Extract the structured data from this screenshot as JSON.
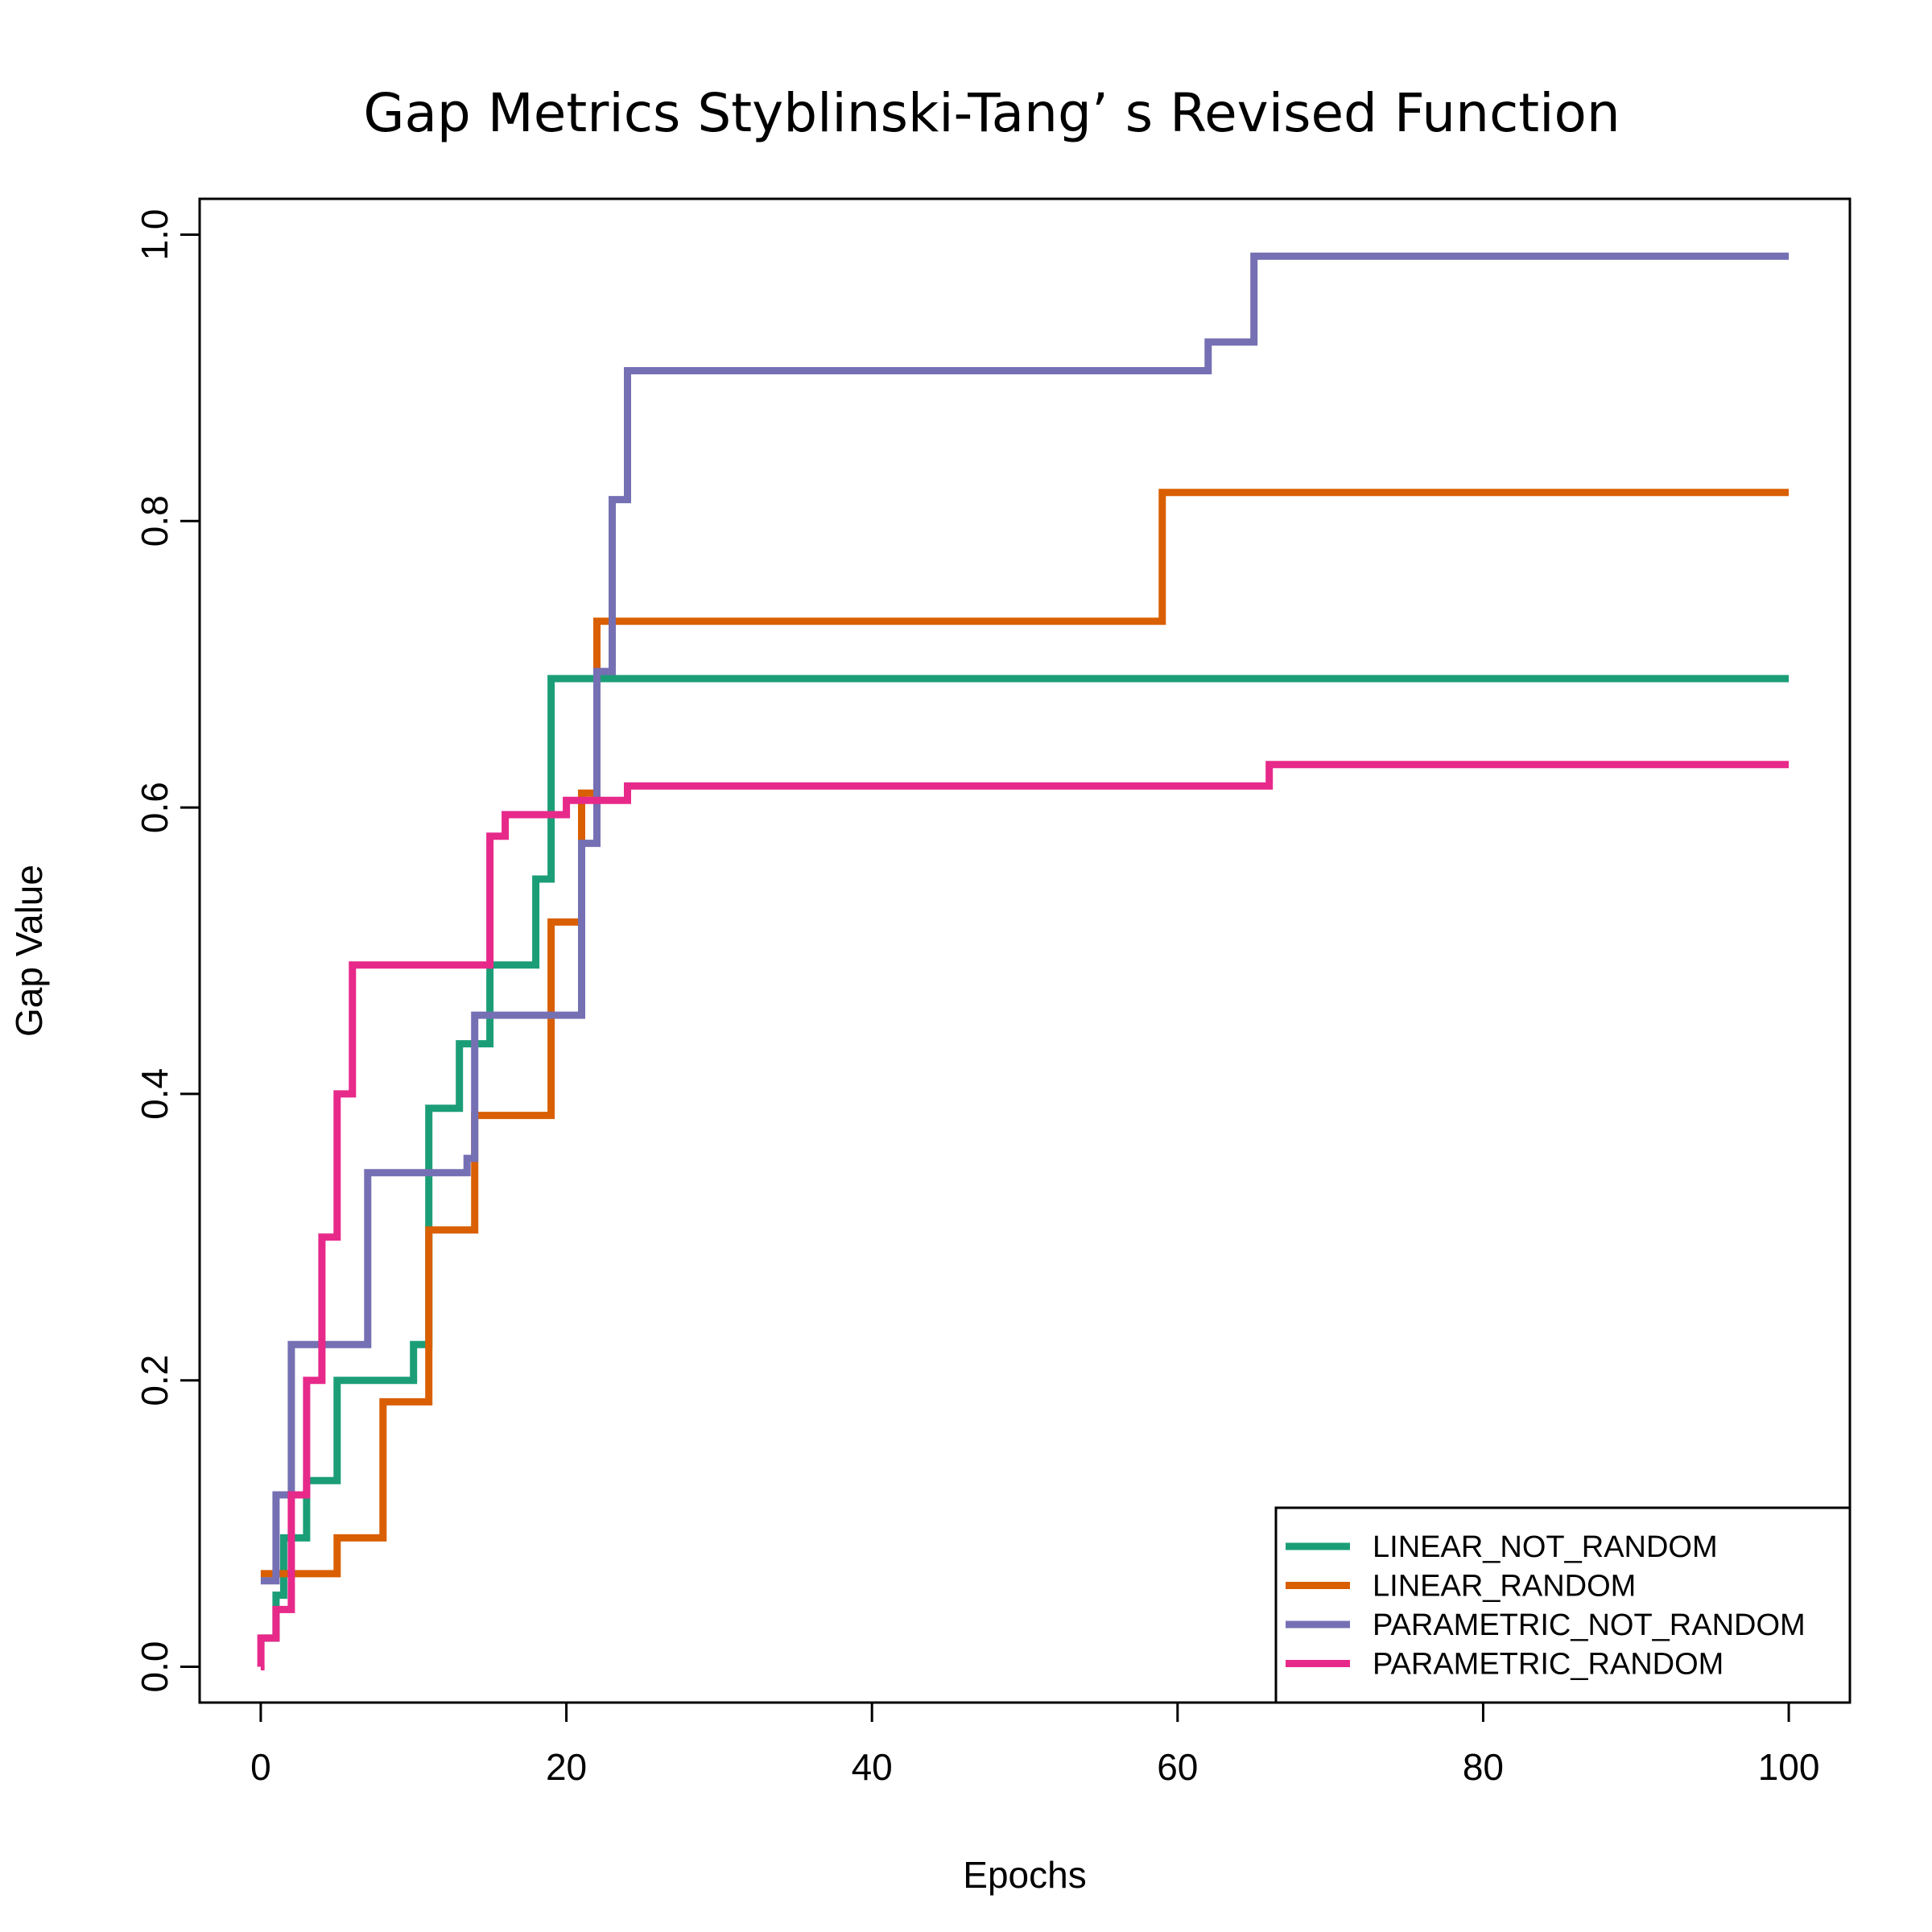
{
  "chart_data": {
    "type": "line",
    "step": true,
    "title": "Gap Metrics Styblinski-Tang’ s Revised Function",
    "xlabel": "Epochs",
    "ylabel": "Gap Value",
    "xlim": [
      -4,
      104
    ],
    "ylim": [
      -0.025,
      1.025
    ],
    "xticks": [
      0,
      20,
      40,
      60,
      80,
      100
    ],
    "yticks": [
      0.0,
      0.2,
      0.4,
      0.6,
      0.8,
      1.0
    ],
    "xtick_labels": [
      "0",
      "20",
      "40",
      "60",
      "80",
      "100"
    ],
    "ytick_labels": [
      "0.0",
      "0.2",
      "0.4",
      "0.6",
      "0.8",
      "1.0"
    ],
    "legend_position": "bottom-right",
    "grid": false,
    "series": [
      {
        "name": "LINEAR_NOT_RANDOM",
        "color": "#1b9e77",
        "points": [
          [
            0,
            0.02
          ],
          [
            1,
            0.05
          ],
          [
            1.5,
            0.09
          ],
          [
            3,
            0.13
          ],
          [
            5,
            0.2
          ],
          [
            10,
            0.225
          ],
          [
            10.5,
            0.225
          ],
          [
            11,
            0.39
          ],
          [
            13,
            0.435
          ],
          [
            15,
            0.49
          ],
          [
            18,
            0.55
          ],
          [
            19,
            0.69
          ],
          [
            100,
            0.69
          ]
        ]
      },
      {
        "name": "LINEAR_RANDOM",
        "color": "#d95f02",
        "points": [
          [
            0,
            0.065
          ],
          [
            5,
            0.09
          ],
          [
            8,
            0.185
          ],
          [
            11,
            0.305
          ],
          [
            14,
            0.385
          ],
          [
            19,
            0.52
          ],
          [
            21,
            0.61
          ],
          [
            22,
            0.73
          ],
          [
            59,
            0.82
          ],
          [
            100,
            0.82
          ]
        ]
      },
      {
        "name": "PARAMETRIC_NOT_RANDOM",
        "color": "#7570b3",
        "points": [
          [
            0,
            0.06
          ],
          [
            1,
            0.12
          ],
          [
            2,
            0.225
          ],
          [
            7,
            0.345
          ],
          [
            13.5,
            0.355
          ],
          [
            14,
            0.455
          ],
          [
            21,
            0.575
          ],
          [
            22,
            0.695
          ],
          [
            23,
            0.815
          ],
          [
            24,
            0.905
          ],
          [
            62,
            0.925
          ],
          [
            65,
            0.985
          ],
          [
            100,
            0.985
          ]
        ]
      },
      {
        "name": "PARAMETRIC_RANDOM",
        "color": "#e7298a",
        "points": [
          [
            0,
            0.0
          ],
          [
            0.01,
            0.02
          ],
          [
            1,
            0.04
          ],
          [
            2,
            0.12
          ],
          [
            3,
            0.2
          ],
          [
            4,
            0.3
          ],
          [
            5,
            0.4
          ],
          [
            6,
            0.49
          ],
          [
            15,
            0.58
          ],
          [
            16,
            0.595
          ],
          [
            20,
            0.605
          ],
          [
            24,
            0.615
          ],
          [
            66,
            0.63
          ],
          [
            100,
            0.63
          ]
        ]
      }
    ]
  }
}
